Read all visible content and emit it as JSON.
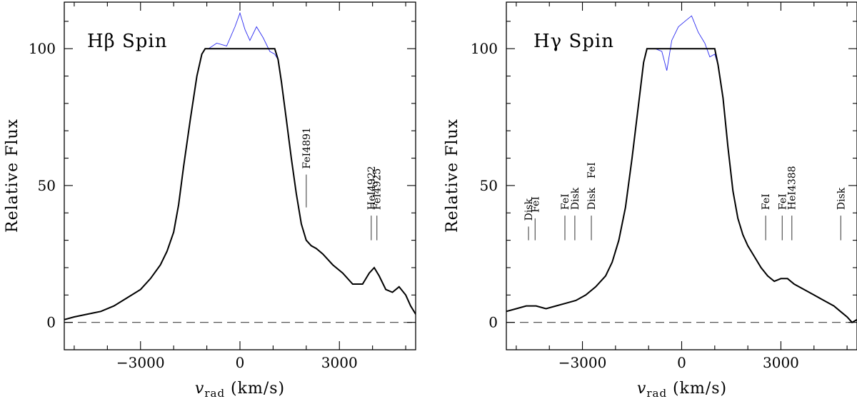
{
  "chart_data": [
    {
      "type": "line",
      "title": "Hβ Spin",
      "xlabel": "v_rad (km/s)",
      "ylabel": "Relative Flux",
      "xlim": [
        -5300,
        5300
      ],
      "ylim": [
        -10,
        117
      ],
      "x_ticks": [
        -3000,
        0,
        3000
      ],
      "y_ticks": [
        0,
        50,
        100
      ],
      "reference_line": {
        "y": 0,
        "style": "dashed"
      },
      "series": [
        {
          "color": "#2b2bf0",
          "x": [
            -5300,
            -5000,
            -4600,
            -4200,
            -3800,
            -3400,
            -3000,
            -2700,
            -2400,
            -2200,
            -2000,
            -1850,
            -1700,
            -1500,
            -1300,
            -1150,
            -1050,
            -950,
            -700,
            -400,
            -150,
            0,
            150,
            300,
            500,
            700,
            900,
            1050,
            1150,
            1250,
            1400,
            1550,
            1700,
            1850,
            2000,
            2150,
            2300,
            2500,
            2800,
            3100,
            3400,
            3700,
            3900,
            4050,
            4200,
            4400,
            4600,
            4800,
            5000,
            5150,
            5300
          ],
          "y": [
            1,
            2,
            3,
            4,
            6,
            9,
            12,
            16,
            21,
            26,
            33,
            43,
            57,
            74,
            90,
            98,
            100,
            100,
            102,
            101,
            108,
            113,
            107,
            103,
            108,
            104,
            99,
            98,
            96,
            88,
            74,
            60,
            47,
            36,
            30,
            28,
            27,
            25,
            21,
            18,
            14,
            14,
            18,
            20,
            17,
            12,
            11,
            13,
            10,
            6,
            3
          ]
        },
        {
          "color": "#000000",
          "x": [
            -5300,
            -5000,
            -4600,
            -4200,
            -3800,
            -3400,
            -3000,
            -2700,
            -2400,
            -2200,
            -2000,
            -1850,
            -1700,
            -1500,
            -1300,
            -1150,
            -1050,
            -950,
            -700,
            -400,
            -150,
            0,
            150,
            300,
            500,
            700,
            900,
            1050,
            1150,
            1250,
            1400,
            1550,
            1700,
            1850,
            2000,
            2150,
            2300,
            2500,
            2800,
            3100,
            3400,
            3700,
            3900,
            4050,
            4200,
            4400,
            4600,
            4800,
            5000,
            5150,
            5300
          ],
          "y": [
            1,
            2,
            3,
            4,
            6,
            9,
            12,
            16,
            21,
            26,
            33,
            43,
            57,
            74,
            90,
            98,
            100,
            100,
            100,
            100,
            100,
            100,
            100,
            100,
            100,
            100,
            100,
            100,
            96,
            88,
            74,
            60,
            47,
            36,
            30,
            28,
            27,
            25,
            21,
            18,
            14,
            14,
            18,
            20,
            17,
            12,
            11,
            13,
            10,
            6,
            3
          ]
        }
      ],
      "annotations": [
        {
          "text": "FeI4891",
          "x": 2000,
          "y1": 42,
          "y2": 54
        },
        {
          "text": "HeI4922",
          "x": 3960,
          "y1": 30,
          "y2": 39
        },
        {
          "text": "FeI4925",
          "x": 4130,
          "y1": 30,
          "y2": 39
        }
      ]
    },
    {
      "type": "line",
      "title": "Hγ Spin",
      "xlabel": "v_rad (km/s)",
      "ylabel": "Relative Flux",
      "xlim": [
        -5300,
        5300
      ],
      "ylim": [
        -10,
        117
      ],
      "x_ticks": [
        -3000,
        0,
        3000
      ],
      "y_ticks": [
        0,
        50,
        100
      ],
      "reference_line": {
        "y": 0,
        "style": "dashed"
      },
      "series": [
        {
          "color": "#2b2bf0",
          "x": [
            -5300,
            -5000,
            -4700,
            -4400,
            -4100,
            -3800,
            -3500,
            -3200,
            -2900,
            -2600,
            -2300,
            -2100,
            -1900,
            -1700,
            -1500,
            -1300,
            -1150,
            -1050,
            -800,
            -600,
            -450,
            -300,
            -100,
            100,
            300,
            500,
            700,
            850,
            1000,
            1100,
            1250,
            1400,
            1550,
            1700,
            1850,
            2000,
            2200,
            2400,
            2600,
            2800,
            3000,
            3200,
            3400,
            3700,
            4000,
            4300,
            4600,
            4800,
            5000,
            5150,
            5300
          ],
          "y": [
            4,
            5,
            6,
            6,
            5,
            6,
            7,
            8,
            10,
            13,
            17,
            22,
            30,
            42,
            60,
            80,
            95,
            100,
            100,
            99,
            92,
            103,
            108,
            110,
            112,
            106,
            102,
            97,
            98,
            94,
            82,
            64,
            48,
            38,
            32,
            28,
            24,
            20,
            17,
            15,
            16,
            16,
            14,
            12,
            10,
            8,
            6,
            4,
            2,
            0,
            1
          ]
        },
        {
          "color": "#000000",
          "x": [
            -5300,
            -5000,
            -4700,
            -4400,
            -4100,
            -3800,
            -3500,
            -3200,
            -2900,
            -2600,
            -2300,
            -2100,
            -1900,
            -1700,
            -1500,
            -1300,
            -1150,
            -1050,
            -800,
            -600,
            -450,
            -300,
            -100,
            100,
            300,
            500,
            700,
            850,
            1000,
            1100,
            1250,
            1400,
            1550,
            1700,
            1850,
            2000,
            2200,
            2400,
            2600,
            2800,
            3000,
            3200,
            3400,
            3700,
            4000,
            4300,
            4600,
            4800,
            5000,
            5150,
            5300
          ],
          "y": [
            4,
            5,
            6,
            6,
            5,
            6,
            7,
            8,
            10,
            13,
            17,
            22,
            30,
            42,
            60,
            80,
            95,
            100,
            100,
            100,
            100,
            100,
            100,
            100,
            100,
            100,
            100,
            100,
            100,
            94,
            82,
            64,
            48,
            38,
            32,
            28,
            24,
            20,
            17,
            15,
            16,
            16,
            14,
            12,
            10,
            8,
            6,
            4,
            2,
            0,
            1
          ]
        }
      ],
      "annotations": [
        {
          "text": "Disk",
          "x": -4630,
          "y1": 30,
          "y2": 35
        },
        {
          "text": "FeI",
          "x": -4430,
          "y1": 30,
          "y2": 38
        },
        {
          "text": "FeI",
          "x": -3530,
          "y1": 30,
          "y2": 39
        },
        {
          "text": "Disk",
          "x": -3230,
          "y1": 30,
          "y2": 39
        },
        {
          "text": "Disk",
          "x": -2730,
          "y1": 30,
          "y2": 39
        },
        {
          "text": "FeI",
          "x": -2730,
          "y1": 30,
          "y2": 39
        },
        {
          "text": "FeI",
          "x": 2540,
          "y1": 30,
          "y2": 39
        },
        {
          "text": "FeI",
          "x": 3040,
          "y1": 30,
          "y2": 39
        },
        {
          "text": "HeI4388",
          "x": 3330,
          "y1": 30,
          "y2": 39
        },
        {
          "text": "Disk",
          "x": 4810,
          "y1": 30,
          "y2": 39
        }
      ]
    }
  ]
}
